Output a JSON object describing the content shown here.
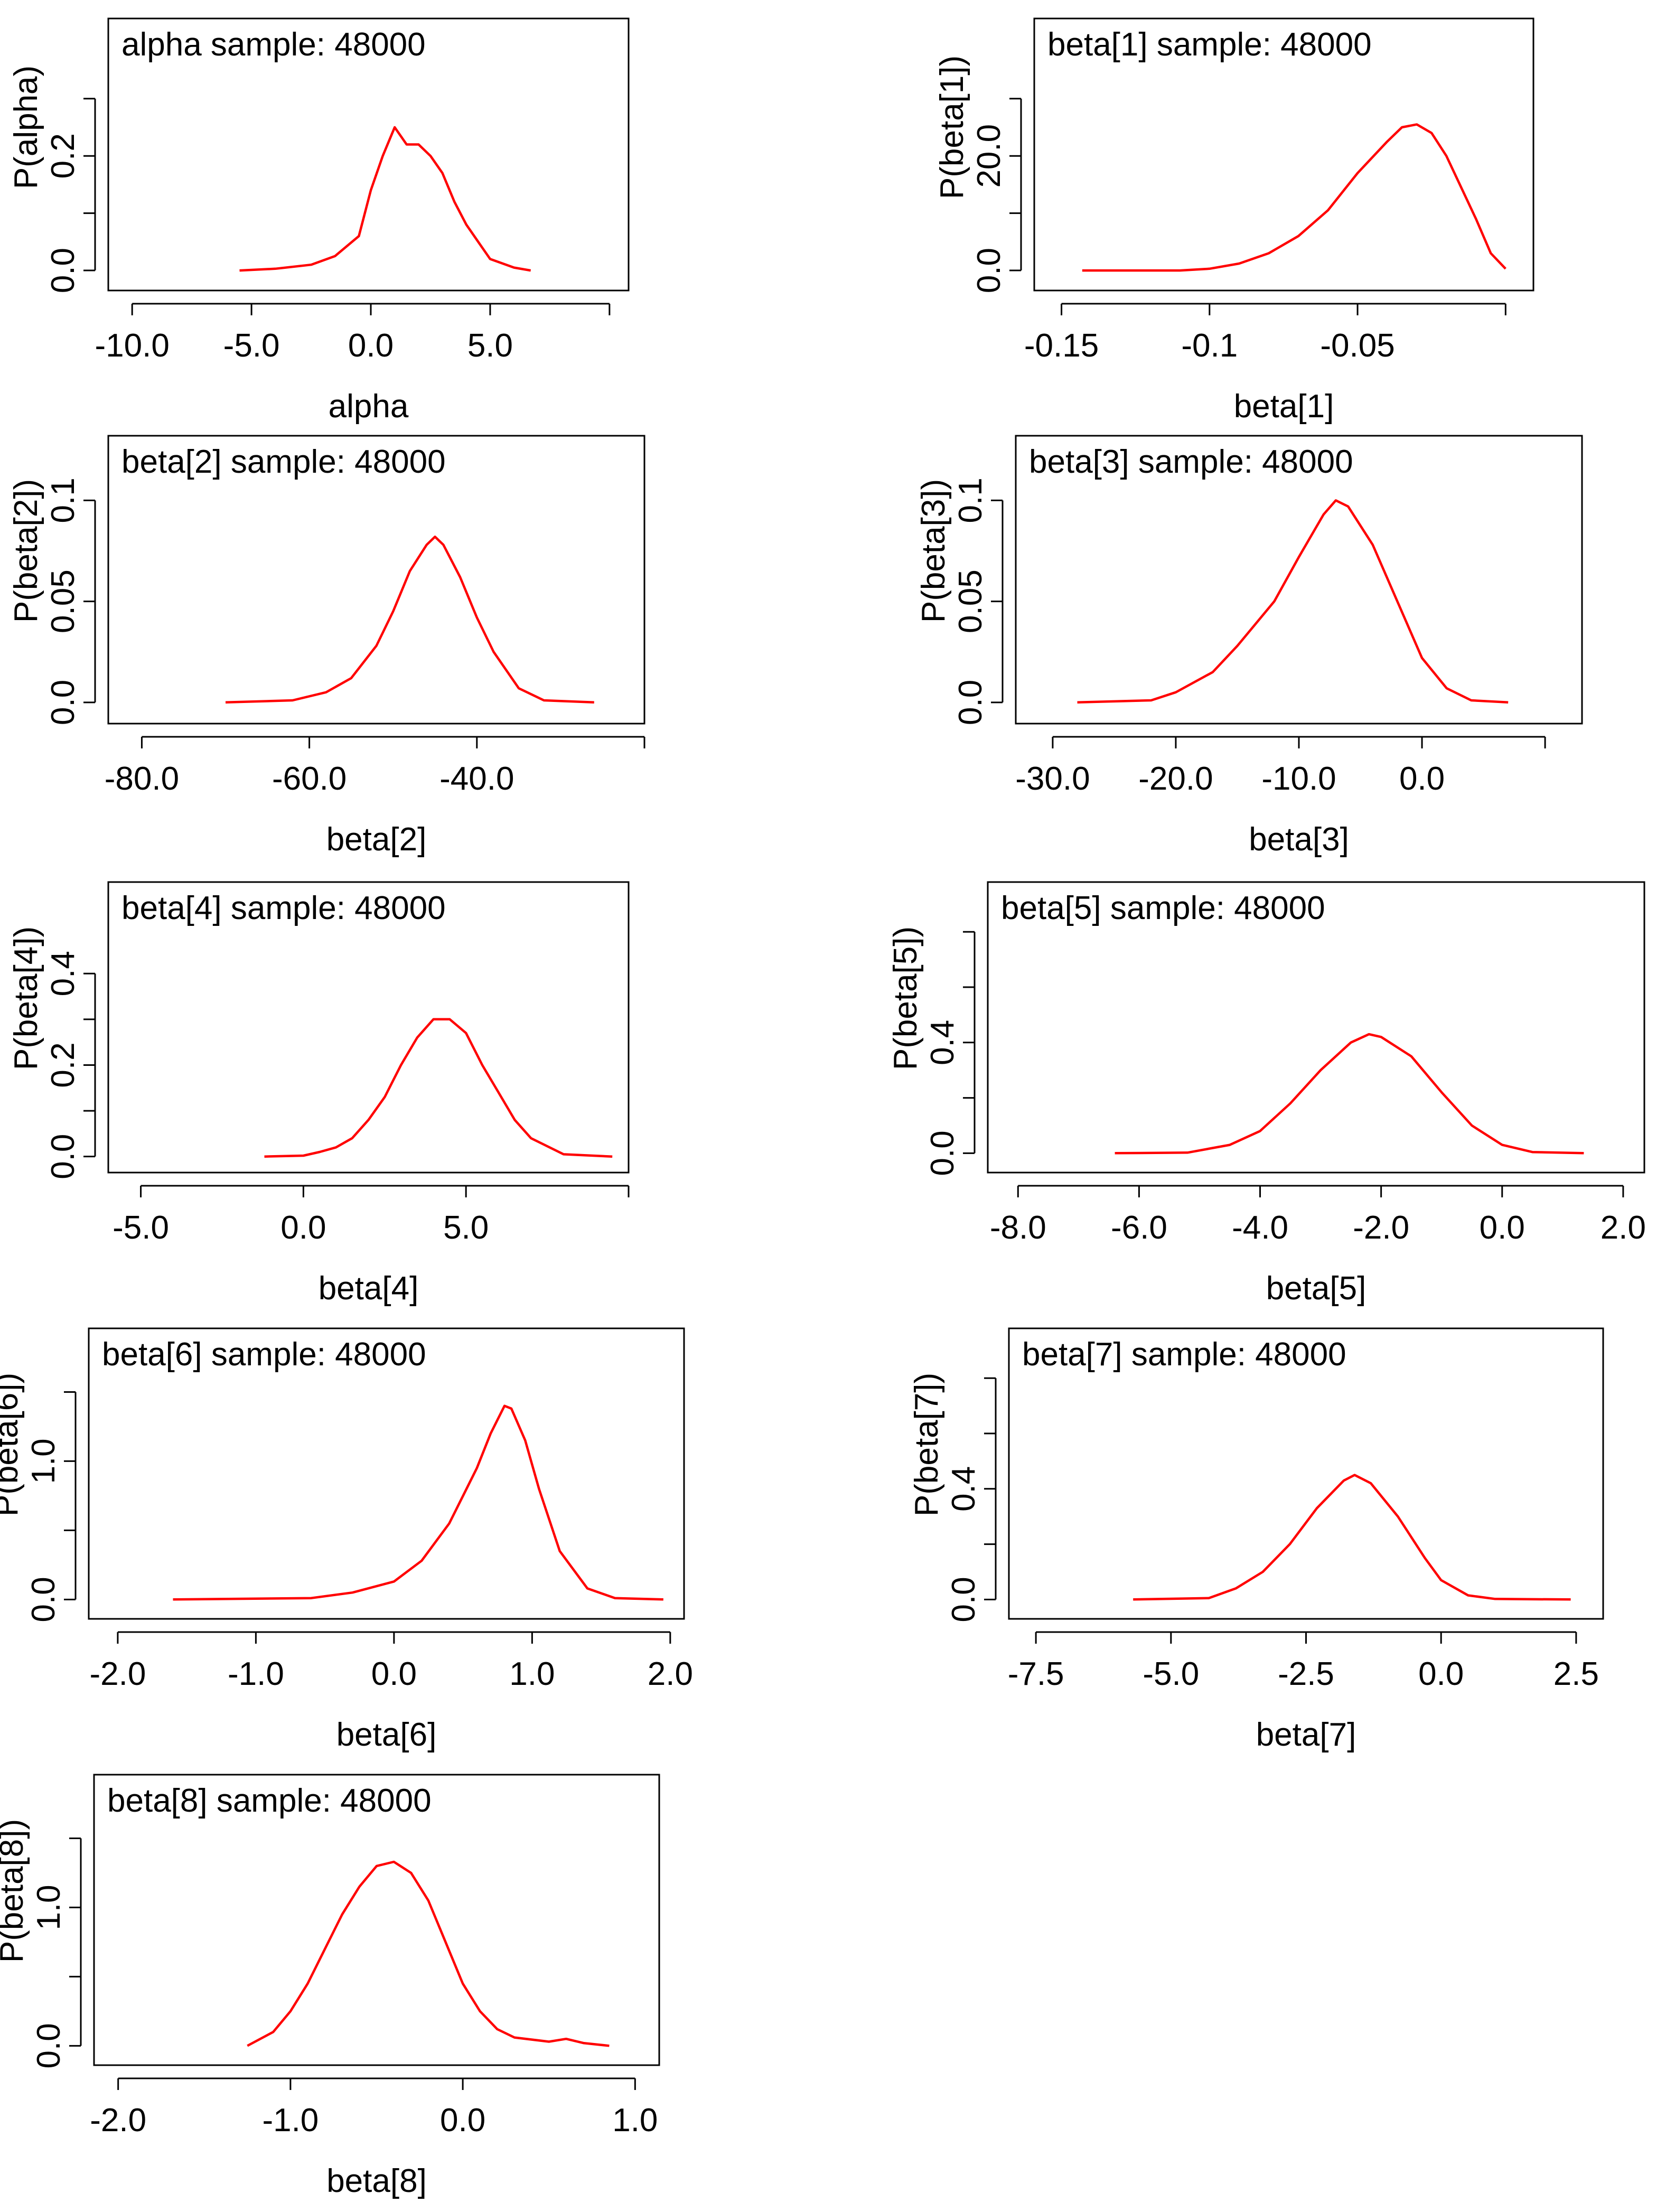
{
  "colors": {
    "curve": "#ff0000",
    "axis": "#000000",
    "background": "#ffffff"
  },
  "chart_data": [
    {
      "type": "line",
      "param": "alpha",
      "title": "alpha sample: 48000",
      "xlabel": "alpha",
      "ylabel": "P(alpha)",
      "xlim": [
        -11.0,
        10.8
      ],
      "ylim": [
        -0.035,
        0.44
      ],
      "xticks": [
        -10,
        -5,
        0,
        5,
        10
      ],
      "xtick_labels": [
        "-10.0",
        "-5.0",
        "0.0",
        "5.0",
        ""
      ],
      "yticks": [
        0,
        0.1,
        0.2,
        0.3
      ],
      "ytick_labels": [
        "0.0",
        "",
        "0.2",
        ""
      ],
      "density": {
        "x": [
          -5.5,
          -4.0,
          -2.5,
          -1.5,
          -0.5,
          0.0,
          0.5,
          1.0,
          1.5,
          2.0,
          2.5,
          3.0,
          3.5,
          4.0,
          4.5,
          5.0,
          6.0,
          6.7
        ],
        "y": [
          0.0,
          0.003,
          0.01,
          0.025,
          0.06,
          0.14,
          0.2,
          0.25,
          0.22,
          0.22,
          0.2,
          0.17,
          0.12,
          0.08,
          0.05,
          0.02,
          0.005,
          0.0
        ]
      }
    },
    {
      "type": "line",
      "param": "beta[1]",
      "title": "beta[1] sample: 48000",
      "xlabel": "beta[1]",
      "ylabel": "P(beta[1])",
      "xlim": [
        -0.1592,
        0.0094
      ],
      "ylim": [
        -3.5,
        44.0
      ],
      "xticks": [
        -0.15,
        -0.1,
        -0.05,
        0
      ],
      "xtick_labels": [
        "-0.15",
        "-0.1",
        "-0.05",
        ""
      ],
      "yticks": [
        0,
        10,
        20,
        30
      ],
      "ytick_labels": [
        "0.0",
        "",
        "20.0",
        ""
      ],
      "density": {
        "x": [
          -0.143,
          -0.11,
          -0.1,
          -0.09,
          -0.08,
          -0.07,
          -0.06,
          -0.05,
          -0.04,
          -0.035,
          -0.03,
          -0.025,
          -0.02,
          -0.01,
          -0.005,
          0.0
        ],
        "y": [
          0.0,
          0.0,
          0.3,
          1.2,
          3.0,
          6.0,
          10.5,
          17.0,
          22.5,
          25.0,
          25.5,
          24.0,
          20.0,
          9.0,
          3.0,
          0.3
        ]
      }
    },
    {
      "type": "line",
      "param": "beta[2]",
      "title": "beta[2] sample: 48000",
      "xlabel": "beta[2]",
      "ylabel": "P(beta[2])",
      "xlim": [
        -84.0,
        -20.0
      ],
      "ylim": [
        -0.0105,
        0.132
      ],
      "xticks": [
        -80,
        -60,
        -40,
        -20
      ],
      "xtick_labels": [
        "-80.0",
        "-60.0",
        "-40.0",
        ""
      ],
      "yticks": [
        0,
        0.05,
        0.1
      ],
      "ytick_labels": [
        "0.0",
        "0.05",
        "0.1"
      ],
      "density": {
        "x": [
          -70,
          -62,
          -58,
          -55,
          -52,
          -50,
          -48,
          -46,
          -45,
          -44,
          -42,
          -40,
          -38,
          -35,
          -32,
          -26
        ],
        "y": [
          0.0,
          0.001,
          0.005,
          0.012,
          0.028,
          0.045,
          0.065,
          0.078,
          0.082,
          0.078,
          0.062,
          0.042,
          0.025,
          0.007,
          0.001,
          0.0
        ]
      }
    },
    {
      "type": "line",
      "param": "beta[3]",
      "title": "beta[3] sample: 48000",
      "xlabel": "beta[3]",
      "ylabel": "P(beta[3])",
      "xlim": [
        -33.0,
        13.0
      ],
      "ylim": [
        -0.0105,
        0.132
      ],
      "xticks": [
        -30,
        -20,
        -10,
        0,
        10
      ],
      "xtick_labels": [
        "-30.0",
        "-20.0",
        "-10.0",
        "0.0",
        ""
      ],
      "yticks": [
        0,
        0.05,
        0.1
      ],
      "ytick_labels": [
        "0.0",
        "0.05",
        "0.1"
      ],
      "density": {
        "x": [
          -28,
          -22,
          -20,
          -17,
          -15,
          -12,
          -10,
          -8,
          -7,
          -6,
          -4,
          -2,
          0,
          2,
          4,
          7
        ],
        "y": [
          0.0,
          0.001,
          0.005,
          0.015,
          0.028,
          0.05,
          0.072,
          0.093,
          0.1,
          0.097,
          0.078,
          0.05,
          0.022,
          0.007,
          0.001,
          0.0
        ]
      }
    },
    {
      "type": "line",
      "param": "beta[4]",
      "title": "beta[4] sample: 48000",
      "xlabel": "beta[4]",
      "ylabel": "P(beta[4])",
      "xlim": [
        -6.0,
        10.0
      ],
      "ylim": [
        -0.035,
        0.6
      ],
      "xticks": [
        -5,
        0,
        5,
        10
      ],
      "xtick_labels": [
        "-5.0",
        "0.0",
        "5.0",
        ""
      ],
      "yticks": [
        0,
        0.1,
        0.2,
        0.3,
        0.4
      ],
      "ytick_labels": [
        "0.0",
        "",
        "0.2",
        "",
        "0.4"
      ],
      "density": {
        "x": [
          -1.2,
          0.0,
          0.5,
          1.0,
          1.5,
          2.0,
          2.5,
          3.0,
          3.5,
          4.0,
          4.5,
          5.0,
          5.5,
          6.0,
          6.5,
          7.0,
          8.0,
          9.5
        ],
        "y": [
          0.0,
          0.002,
          0.01,
          0.02,
          0.04,
          0.08,
          0.13,
          0.2,
          0.26,
          0.3,
          0.3,
          0.27,
          0.2,
          0.14,
          0.08,
          0.04,
          0.005,
          0.0
        ]
      }
    },
    {
      "type": "line",
      "param": "beta[5]",
      "title": "beta[5] sample: 48000",
      "xlabel": "beta[5]",
      "ylabel": "P(beta[5])",
      "xlim": [
        -8.5,
        2.35
      ],
      "ylim": [
        -0.07,
        0.98
      ],
      "xticks": [
        -8,
        -6,
        -4,
        -2,
        0,
        2
      ],
      "xtick_labels": [
        "-8.0",
        "-6.0",
        "-4.0",
        "-2.0",
        "0.0",
        "2.0"
      ],
      "yticks": [
        0,
        0.2,
        0.4,
        0.6,
        0.8
      ],
      "ytick_labels": [
        "0.0",
        "",
        "0.4",
        "",
        ""
      ],
      "density": {
        "x": [
          -6.4,
          -5.2,
          -4.5,
          -4.0,
          -3.5,
          -3.0,
          -2.5,
          -2.2,
          -2.0,
          -1.5,
          -1.0,
          -0.5,
          0.0,
          0.5,
          1.35
        ],
        "y": [
          0.0,
          0.002,
          0.03,
          0.08,
          0.18,
          0.3,
          0.4,
          0.43,
          0.42,
          0.35,
          0.22,
          0.1,
          0.03,
          0.004,
          0.0
        ]
      }
    },
    {
      "type": "line",
      "param": "beta[6]",
      "title": "beta[6] sample: 48000",
      "xlabel": "beta[6]",
      "ylabel": "P(beta[6])",
      "xlim": [
        -2.21,
        2.1
      ],
      "ylim": [
        -0.14,
        1.96
      ],
      "xticks": [
        -2,
        -1,
        0,
        1,
        2
      ],
      "xtick_labels": [
        "-2.0",
        "-1.0",
        "0.0",
        "1.0",
        "2.0"
      ],
      "yticks": [
        0,
        0.5,
        1.0,
        1.5
      ],
      "ytick_labels": [
        "0.0",
        "",
        "1.0",
        ""
      ],
      "density": {
        "x": [
          -1.6,
          -0.6,
          -0.3,
          0.0,
          0.2,
          0.4,
          0.6,
          0.7,
          0.8,
          0.85,
          0.95,
          1.05,
          1.2,
          1.4,
          1.6,
          1.95
        ],
        "y": [
          0.0,
          0.01,
          0.05,
          0.13,
          0.28,
          0.55,
          0.95,
          1.2,
          1.4,
          1.38,
          1.15,
          0.8,
          0.35,
          0.08,
          0.01,
          0.0
        ]
      }
    },
    {
      "type": "line",
      "param": "beta[7]",
      "title": "beta[7] sample: 48000",
      "xlabel": "beta[7]",
      "ylabel": "P(beta[7])",
      "xlim": [
        -8.0,
        3.0
      ],
      "ylim": [
        -0.07,
        0.98
      ],
      "xticks": [
        -7.5,
        -5,
        -2.5,
        0,
        2.5
      ],
      "xtick_labels": [
        "-7.5",
        "-5.0",
        "-2.5",
        "0.0",
        "2.5"
      ],
      "yticks": [
        0,
        0.2,
        0.4,
        0.6,
        0.8
      ],
      "ytick_labels": [
        "0.0",
        "",
        "0.4",
        "",
        ""
      ],
      "density": {
        "x": [
          -5.7,
          -4.3,
          -3.8,
          -3.3,
          -2.8,
          -2.3,
          -1.8,
          -1.6,
          -1.3,
          -0.8,
          -0.3,
          0.0,
          0.5,
          1.0,
          2.4
        ],
        "y": [
          0.0,
          0.005,
          0.04,
          0.1,
          0.2,
          0.33,
          0.43,
          0.45,
          0.42,
          0.3,
          0.15,
          0.07,
          0.015,
          0.002,
          0.0
        ]
      }
    },
    {
      "type": "line",
      "param": "beta[8]",
      "title": "beta[8] sample: 48000",
      "xlabel": "beta[8]",
      "ylabel": "P(beta[8])",
      "xlim": [
        -2.14,
        1.14
      ],
      "ylim": [
        -0.14,
        1.96
      ],
      "xticks": [
        -2,
        -1,
        0,
        1
      ],
      "xtick_labels": [
        "-2.0",
        "-1.0",
        "0.0",
        "1.0"
      ],
      "yticks": [
        0,
        0.5,
        1.0,
        1.5
      ],
      "ytick_labels": [
        "0.0",
        "",
        "1.0",
        ""
      ],
      "density": {
        "x": [
          -1.25,
          -1.1,
          -1.0,
          -0.9,
          -0.8,
          -0.7,
          -0.6,
          -0.5,
          -0.4,
          -0.3,
          -0.2,
          -0.1,
          0.0,
          0.1,
          0.2,
          0.3,
          0.5,
          0.6,
          0.7,
          0.85
        ],
        "y": [
          0.0,
          0.1,
          0.25,
          0.45,
          0.7,
          0.95,
          1.15,
          1.3,
          1.33,
          1.25,
          1.05,
          0.75,
          0.45,
          0.25,
          0.12,
          0.06,
          0.03,
          0.05,
          0.02,
          0.0
        ]
      }
    }
  ]
}
